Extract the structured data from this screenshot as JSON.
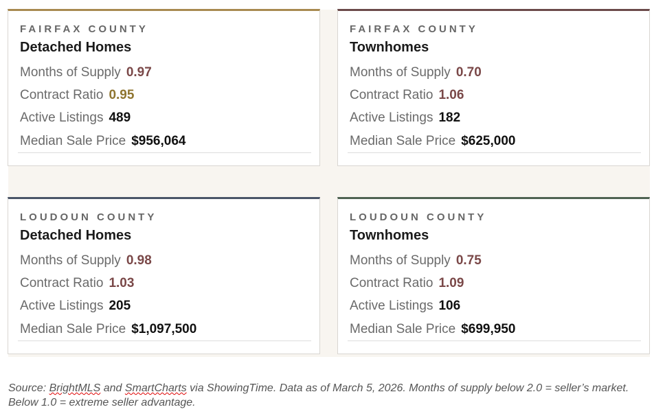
{
  "cards": [
    {
      "county": "FAIRFAX COUNTY",
      "type": "Detached Homes",
      "months_label": "Months of Supply",
      "months": "0.97",
      "ratio_label": "Contract Ratio",
      "ratio": "0.95",
      "active_label": "Active Listings",
      "active": "489",
      "median_label": "Median Sale Price",
      "median": "$956,064",
      "accent": "#a88a50",
      "months_color": "#7a4848",
      "ratio_color": "#8f7530"
    },
    {
      "county": "FAIRFAX COUNTY",
      "type": "Townhomes",
      "months_label": "Months of Supply",
      "months": "0.70",
      "ratio_label": "Contract Ratio",
      "ratio": "1.06",
      "active_label": "Active Listings",
      "active": "182",
      "median_label": "Median Sale Price",
      "median": "$625,000",
      "accent": "#6b4a4a",
      "months_color": "#7a4848",
      "ratio_color": "#7a4848"
    },
    {
      "county": "LOUDOUN COUNTY",
      "type": "Detached Homes",
      "months_label": "Months of Supply",
      "months": "0.98",
      "ratio_label": "Contract Ratio",
      "ratio": "1.03",
      "active_label": "Active Listings",
      "active": "205",
      "median_label": "Median Sale Price",
      "median": "$1,097,500",
      "accent": "#4a5568",
      "months_color": "#7a4848",
      "ratio_color": "#7a4848"
    },
    {
      "county": "LOUDOUN COUNTY",
      "type": "Townhomes",
      "months_label": "Months of Supply",
      "months": "0.75",
      "ratio_label": "Contract Ratio",
      "ratio": "1.09",
      "active_label": "Active Listings",
      "active": "106",
      "median_label": "Median Sale Price",
      "median": "$699,950",
      "accent": "#4f6352",
      "months_color": "#7a4848",
      "ratio_color": "#7a4848"
    }
  ],
  "source": {
    "p1": "Source: ",
    "w1": "BrightMLS",
    "p2": " and ",
    "w2": "SmartCharts",
    "p3": " via ShowingTime. Data as of March 5, 2026. Months of supply below 2.0 = seller’s market. Below 1.0 = extreme seller advantage."
  }
}
